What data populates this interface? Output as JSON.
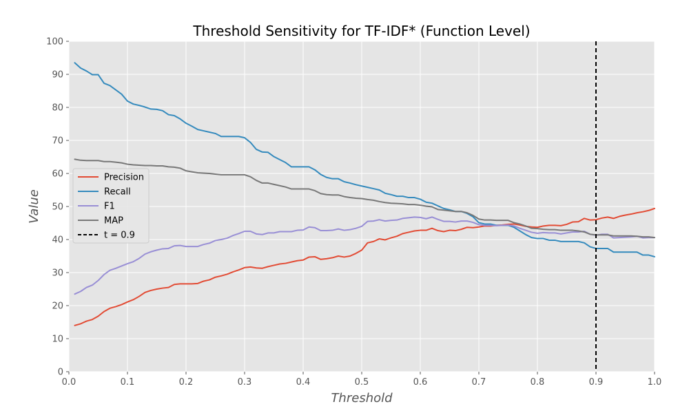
{
  "chart_data": {
    "type": "line",
    "title": "Threshold Sensitivity for TF-IDF* (Function Level)",
    "xlabel": "Threshold",
    "ylabel": "Value",
    "xlim": [
      0,
      1
    ],
    "ylim": [
      0,
      100
    ],
    "xticks": [
      "0.0",
      "0.1",
      "0.2",
      "0.3",
      "0.4",
      "0.5",
      "0.6",
      "0.7",
      "0.8",
      "0.9",
      "1.0"
    ],
    "yticks": [
      "0",
      "10",
      "20",
      "30",
      "40",
      "50",
      "60",
      "70",
      "80",
      "90",
      "100"
    ],
    "grid": true,
    "legend_position": "center-left",
    "x": [
      0.01,
      0.02,
      0.03,
      0.04,
      0.05,
      0.06,
      0.07,
      0.08,
      0.09,
      0.1,
      0.11,
      0.12,
      0.13,
      0.14,
      0.15,
      0.16,
      0.17,
      0.18,
      0.19,
      0.2,
      0.21,
      0.22,
      0.23,
      0.24,
      0.25,
      0.26,
      0.27,
      0.28,
      0.29,
      0.3,
      0.31,
      0.32,
      0.33,
      0.34,
      0.35,
      0.36,
      0.37,
      0.38,
      0.39,
      0.4,
      0.41,
      0.42,
      0.43,
      0.44,
      0.45,
      0.46,
      0.47,
      0.48,
      0.49,
      0.5,
      0.51,
      0.52,
      0.53,
      0.54,
      0.55,
      0.56,
      0.57,
      0.58,
      0.59,
      0.6,
      0.61,
      0.62,
      0.63,
      0.64,
      0.65,
      0.66,
      0.67,
      0.68,
      0.69,
      0.7,
      0.71,
      0.72,
      0.73,
      0.74,
      0.75,
      0.76,
      0.77,
      0.78,
      0.79,
      0.8,
      0.81,
      0.82,
      0.83,
      0.84,
      0.85,
      0.86,
      0.87,
      0.88,
      0.89,
      0.9,
      0.91,
      0.92,
      0.93,
      0.94,
      0.95,
      0.96,
      0.97,
      0.98,
      0.99,
      1.0
    ],
    "series": [
      {
        "name": "Precision",
        "color": "#E24A33",
        "values": [
          14,
          14.5,
          15.3,
          15.8,
          16.8,
          18.2,
          19.2,
          19.7,
          20.3,
          21.1,
          21.8,
          22.8,
          24.0,
          24.6,
          25.0,
          25.3,
          25.5,
          26.4,
          26.6,
          26.6,
          26.6,
          26.7,
          27.4,
          27.8,
          28.6,
          29.0,
          29.5,
          30.2,
          30.8,
          31.5,
          31.7,
          31.4,
          31.3,
          31.8,
          32.2,
          32.6,
          32.8,
          33.2,
          33.6,
          33.8,
          34.7,
          34.8,
          34.0,
          34.2,
          34.5,
          35.0,
          34.7,
          35.0,
          35.8,
          36.8,
          39.0,
          39.4,
          40.2,
          39.9,
          40.5,
          41.0,
          41.8,
          42.2,
          42.6,
          42.8,
          42.8,
          43.4,
          42.7,
          42.4,
          42.8,
          42.7,
          43.1,
          43.7,
          43.6,
          43.8,
          44.1,
          44.1,
          44.3,
          44.4,
          44.6,
          44.7,
          44.4,
          44.0,
          43.8,
          43.7,
          44.1,
          44.3,
          44.3,
          44.2,
          44.6,
          45.3,
          45.4,
          46.4,
          45.9,
          46.0,
          46.5,
          46.8,
          46.4,
          47.0,
          47.4,
          47.7,
          48.1,
          48.4,
          48.8,
          49.4
        ]
      },
      {
        "name": "Recall",
        "color": "#348ABD",
        "values": [
          93.5,
          91.9,
          91.0,
          89.9,
          89.9,
          87.3,
          86.6,
          85.3,
          84.0,
          81.9,
          81.0,
          80.6,
          80.1,
          79.5,
          79.4,
          79.0,
          77.8,
          77.5,
          76.5,
          75.2,
          74.3,
          73.3,
          72.9,
          72.5,
          72.1,
          71.2,
          71.2,
          71.2,
          71.2,
          70.8,
          69.4,
          67.3,
          66.5,
          66.4,
          65.1,
          64.2,
          63.3,
          62.0,
          62.0,
          62.0,
          62.0,
          61.1,
          59.7,
          58.8,
          58.4,
          58.4,
          57.5,
          57.1,
          56.6,
          56.2,
          55.8,
          55.4,
          55.0,
          54.0,
          53.6,
          53.1,
          53.1,
          52.7,
          52.7,
          52.2,
          51.3,
          51.0,
          50.2,
          49.4,
          49.0,
          48.5,
          48.5,
          47.9,
          46.9,
          45.1,
          44.7,
          44.7,
          44.3,
          44.3,
          44.3,
          43.7,
          42.6,
          41.5,
          40.6,
          40.3,
          40.3,
          39.8,
          39.8,
          39.4,
          39.4,
          39.4,
          39.4,
          39.0,
          37.8,
          37.3,
          37.3,
          37.3,
          36.2,
          36.2,
          36.2,
          36.2,
          36.2,
          35.3,
          35.3,
          34.8
        ]
      },
      {
        "name": "F1",
        "color": "#988ED5",
        "values": [
          23.5,
          24.3,
          25.5,
          26.2,
          27.6,
          29.4,
          30.7,
          31.3,
          32.0,
          32.7,
          33.3,
          34.3,
          35.6,
          36.3,
          36.8,
          37.2,
          37.3,
          38.1,
          38.2,
          37.9,
          37.9,
          37.9,
          38.5,
          38.9,
          39.7,
          40.0,
          40.4,
          41.2,
          41.8,
          42.5,
          42.5,
          41.7,
          41.5,
          42.0,
          42.0,
          42.4,
          42.4,
          42.4,
          42.8,
          42.9,
          43.8,
          43.6,
          42.7,
          42.7,
          42.8,
          43.2,
          42.8,
          43.0,
          43.4,
          44.0,
          45.5,
          45.6,
          46.0,
          45.6,
          45.8,
          45.9,
          46.4,
          46.6,
          46.8,
          46.7,
          46.3,
          46.8,
          46.1,
          45.5,
          45.5,
          45.3,
          45.6,
          45.6,
          45.2,
          44.5,
          44.3,
          44.3,
          44.2,
          44.3,
          44.4,
          44.1,
          43.4,
          42.8,
          42.2,
          41.9,
          42.1,
          42.0,
          42.0,
          41.7,
          42.0,
          42.3,
          42.3,
          42.5,
          41.6,
          41.3,
          41.6,
          41.6,
          40.5,
          40.6,
          40.7,
          40.8,
          41.0,
          40.5,
          40.6,
          40.6
        ]
      },
      {
        "name": "MAP",
        "color": "#777777",
        "values": [
          64.3,
          64.0,
          63.9,
          63.9,
          63.9,
          63.6,
          63.6,
          63.4,
          63.2,
          62.8,
          62.6,
          62.5,
          62.4,
          62.4,
          62.3,
          62.3,
          62.0,
          61.9,
          61.6,
          60.8,
          60.5,
          60.2,
          60.1,
          60.0,
          59.8,
          59.6,
          59.6,
          59.6,
          59.6,
          59.6,
          59.0,
          57.9,
          57.1,
          57.1,
          56.7,
          56.3,
          55.9,
          55.3,
          55.3,
          55.3,
          55.3,
          54.8,
          53.9,
          53.6,
          53.5,
          53.5,
          53.0,
          52.7,
          52.5,
          52.4,
          52.1,
          51.9,
          51.5,
          51.2,
          51.0,
          50.9,
          50.8,
          50.6,
          50.6,
          50.4,
          50.1,
          49.9,
          49.1,
          48.9,
          48.7,
          48.5,
          48.5,
          48.1,
          47.3,
          46.2,
          45.9,
          45.9,
          45.8,
          45.8,
          45.8,
          45.1,
          44.7,
          44.1,
          43.4,
          43.3,
          43.1,
          43.0,
          43.0,
          42.8,
          42.8,
          42.8,
          42.6,
          42.3,
          41.6,
          41.4,
          41.4,
          41.4,
          41.1,
          41.1,
          41.1,
          41.1,
          41.0,
          40.8,
          40.8,
          40.6
        ]
      }
    ],
    "vline": {
      "x": 0.9,
      "label": "t = 0.9",
      "color": "#000000",
      "style": "dashed"
    }
  }
}
